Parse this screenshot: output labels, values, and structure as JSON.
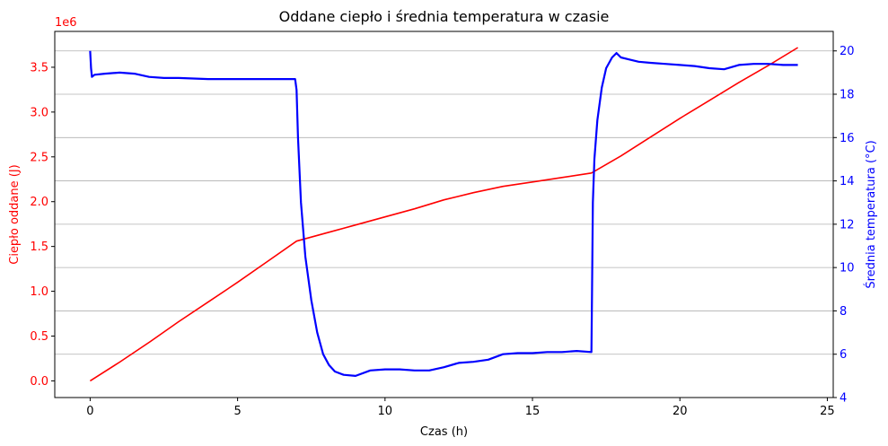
{
  "chart_data": {
    "type": "line",
    "title": "Oddane ciepło i średnia temperatura w czasie",
    "xlabel": "Czas (h)",
    "xlim": [
      -1.2,
      25.2
    ],
    "x_ticks": [
      0,
      5,
      10,
      15,
      20,
      25
    ],
    "y_left": {
      "label": "Ciepło oddane (J)",
      "color": "#ff0000",
      "scale_text": "1e6",
      "lim": [
        -0.186,
        3.9
      ],
      "ticks": [
        0.0,
        0.5,
        1.0,
        1.5,
        2.0,
        2.5,
        3.0,
        3.5
      ],
      "tick_labels": [
        "0.0",
        "0.5",
        "1.0",
        "1.5",
        "2.0",
        "2.5",
        "3.0",
        "3.5"
      ],
      "multiplier": 1000000
    },
    "y_right": {
      "label": "Średnia temperatura (°C)",
      "color": "#0000ff",
      "lim": [
        4.0,
        20.9
      ],
      "ticks": [
        4,
        6,
        8,
        10,
        12,
        14,
        16,
        18,
        20
      ],
      "tick_labels": [
        "4",
        "6",
        "8",
        "10",
        "12",
        "14",
        "16",
        "18",
        "20"
      ]
    },
    "grid": "horizontal lines at right-axis ticks",
    "series": [
      {
        "name": "",
        "axis": "left",
        "color": "#ff0000",
        "x": [
          0,
          1,
          2,
          3,
          4,
          5,
          6,
          7,
          8,
          9,
          10,
          11,
          12,
          13,
          14,
          15,
          16,
          17,
          18,
          19,
          20,
          21,
          22,
          23,
          24
        ],
        "y": [
          0.0,
          0.21,
          0.43,
          0.66,
          0.88,
          1.1,
          1.33,
          1.56,
          1.65,
          1.74,
          1.83,
          1.92,
          2.02,
          2.1,
          2.17,
          2.22,
          2.27,
          2.32,
          2.51,
          2.72,
          2.93,
          3.13,
          3.33,
          3.52,
          3.72
        ]
      },
      {
        "name": "",
        "axis": "right",
        "color": "#0000ff",
        "x": [
          0,
          0.03,
          0.06,
          0.15,
          0.5,
          1,
          1.5,
          2,
          2.5,
          3,
          4,
          5,
          6,
          6.8,
          6.95,
          7.0,
          7.05,
          7.15,
          7.3,
          7.5,
          7.7,
          7.9,
          8.1,
          8.3,
          8.6,
          9.0,
          9.5,
          10,
          10.5,
          11,
          11.5,
          12,
          12.5,
          13,
          13.5,
          14,
          14.5,
          15,
          15.5,
          16,
          16.5,
          17.0,
          17.02,
          17.05,
          17.1,
          17.2,
          17.35,
          17.5,
          17.7,
          17.85,
          18.0,
          18.3,
          18.6,
          19,
          19.5,
          20,
          20.5,
          21,
          21.5,
          22,
          22.5,
          23,
          23.5,
          24
        ],
        "y": [
          20.0,
          19.2,
          18.8,
          18.9,
          18.95,
          19.0,
          18.95,
          18.8,
          18.75,
          18.75,
          18.7,
          18.7,
          18.7,
          18.7,
          18.7,
          18.2,
          16.0,
          13.0,
          10.5,
          8.5,
          7.0,
          6.0,
          5.5,
          5.2,
          5.05,
          5.0,
          5.25,
          5.3,
          5.3,
          5.25,
          5.25,
          5.4,
          5.6,
          5.65,
          5.75,
          6.0,
          6.05,
          6.05,
          6.1,
          6.1,
          6.15,
          6.1,
          9.0,
          13.0,
          15.0,
          16.8,
          18.3,
          19.2,
          19.7,
          19.9,
          19.7,
          19.6,
          19.5,
          19.45,
          19.4,
          19.35,
          19.3,
          19.2,
          19.15,
          19.35,
          19.4,
          19.4,
          19.35,
          19.35
        ]
      }
    ]
  }
}
